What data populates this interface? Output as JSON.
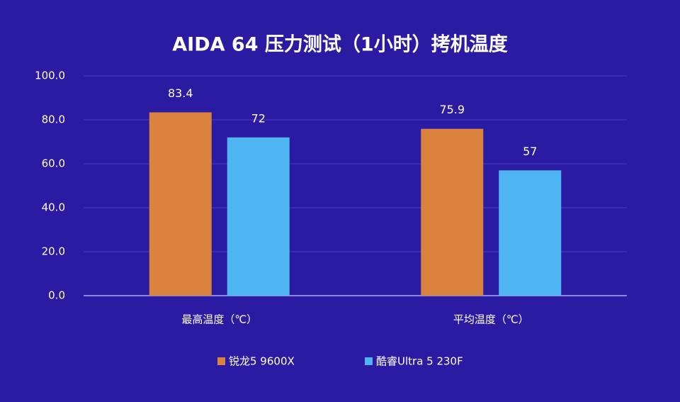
{
  "chart_data": {
    "type": "bar",
    "title": "AIDA 64 压力测试（1小时）拷机温度",
    "categories": [
      "最高温度（℃）",
      "平均温度（℃）"
    ],
    "series": [
      {
        "name": "锐龙5 9600X",
        "color": "#d9833f",
        "values": [
          83.4,
          75.9
        ]
      },
      {
        "name": "酷睿Ultra 5 230F",
        "color": "#4fb4f2",
        "values": [
          72,
          57
        ]
      }
    ],
    "ylim": [
      0,
      100
    ],
    "yticks": [
      {
        "value": 0,
        "label": "0.0"
      },
      {
        "value": 20,
        "label": "20.0"
      },
      {
        "value": 40,
        "label": "40.0"
      },
      {
        "value": 60,
        "label": "60.0"
      },
      {
        "value": 80,
        "label": "80.0"
      },
      {
        "value": 100,
        "label": "100.0"
      }
    ],
    "grid": true,
    "legend": "bottom"
  }
}
